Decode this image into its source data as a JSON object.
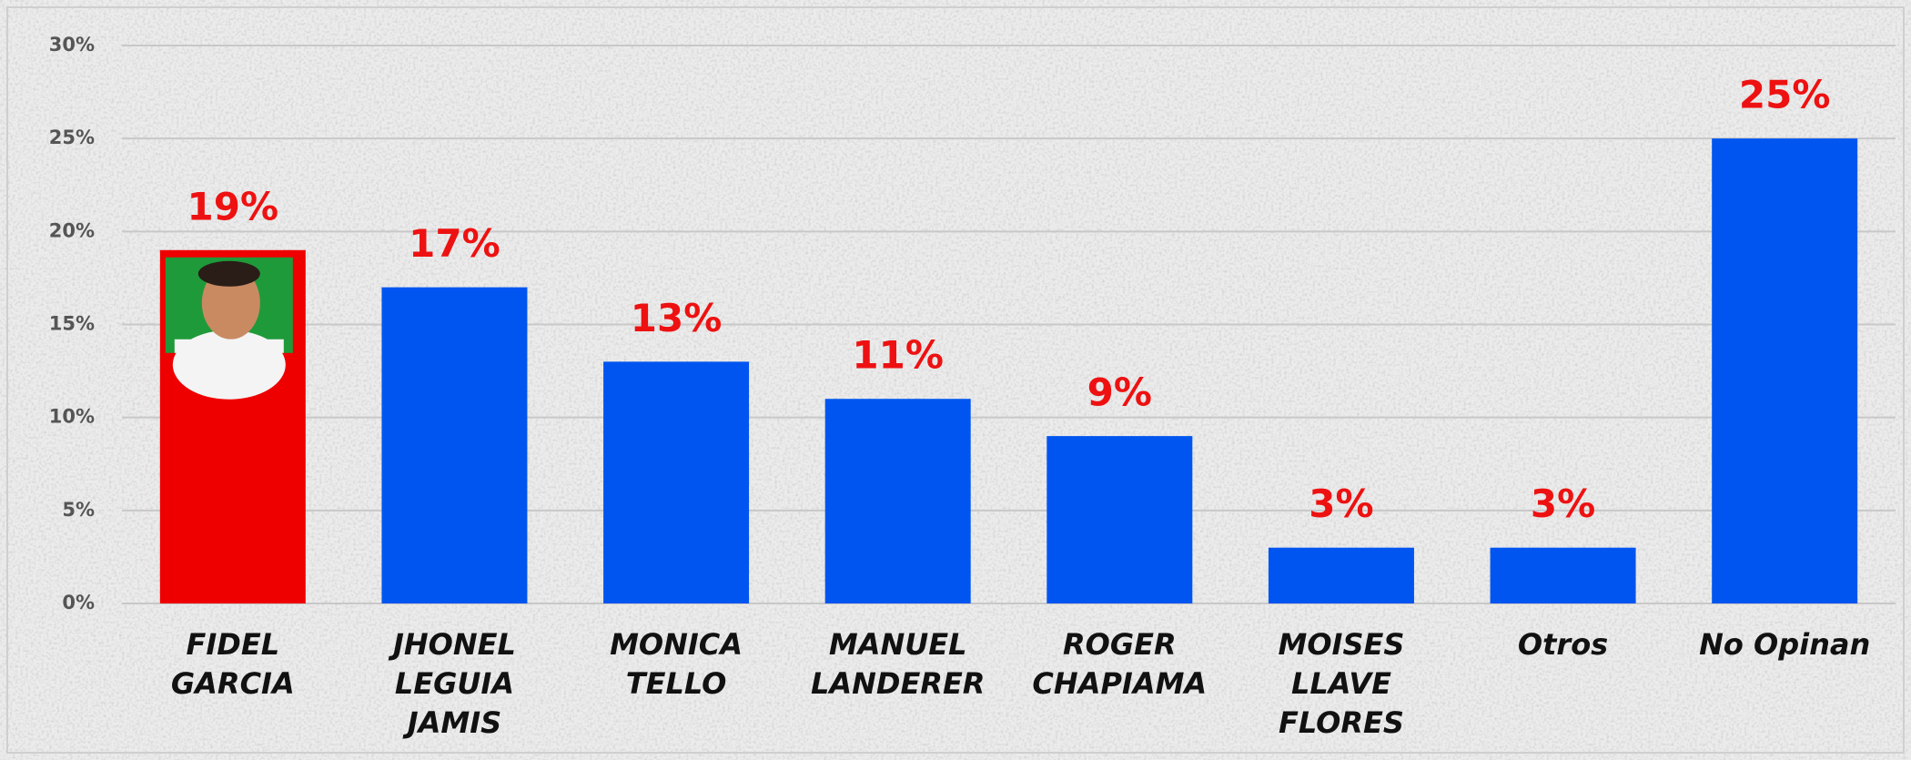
{
  "chart_data": {
    "type": "bar",
    "categories": [
      [
        "FIDEL",
        "GARCIA"
      ],
      [
        "JHONEL",
        "LEGUIA",
        "JAMIS"
      ],
      [
        "MONICA",
        "TELLO"
      ],
      [
        "MANUEL",
        "LANDERER"
      ],
      [
        "ROGER",
        "CHAPIAMA"
      ],
      [
        "MOISES",
        "LLAVE",
        "FLORES"
      ],
      [
        "Otros"
      ],
      [
        "No Opinan"
      ]
    ],
    "values": [
      19,
      17,
      13,
      11,
      9,
      3,
      3,
      25
    ],
    "value_labels": [
      "19%",
      "17%",
      "13%",
      "11%",
      "9%",
      "3%",
      "3%",
      "25%"
    ],
    "colors": [
      "#ee0000",
      "#0055f0",
      "#0055f0",
      "#0055f0",
      "#0055f0",
      "#0055f0",
      "#0055f0",
      "#0055f0"
    ],
    "ylim": [
      0,
      30
    ],
    "yticks": [
      {
        "value": 0,
        "label": "0%"
      },
      {
        "value": 5,
        "label": "5%"
      },
      {
        "value": 10,
        "label": "10%"
      },
      {
        "value": 15,
        "label": "15%"
      },
      {
        "value": 20,
        "label": "20%"
      },
      {
        "value": 25,
        "label": "25%"
      },
      {
        "value": 30,
        "label": "30%"
      }
    ],
    "grid": true
  }
}
